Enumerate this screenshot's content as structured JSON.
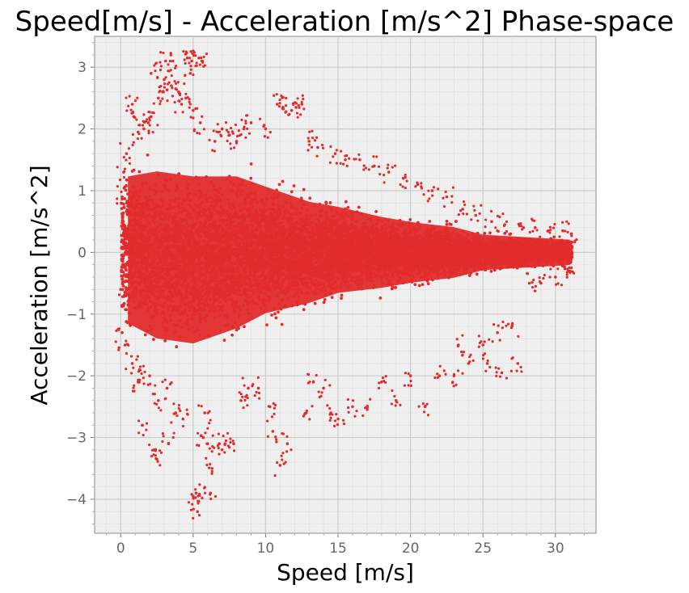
{
  "chart_data": {
    "type": "scatter",
    "title": "Speed[m/s] - Acceleration [m/s^2] Phase-space",
    "xlabel": "Speed [m/s]",
    "ylabel": "Acceleration [m/s^2]",
    "xlim": [
      -1.8,
      32.8
    ],
    "ylim": [
      -4.55,
      3.5
    ],
    "xticks": [
      0,
      5,
      10,
      15,
      20,
      25,
      30
    ],
    "xtick_labels": [
      "0",
      "5",
      "10",
      "15",
      "20",
      "25",
      "30"
    ],
    "yticks": [
      -4,
      -3,
      -2,
      -1,
      0,
      1,
      2,
      3
    ],
    "ytick_labels": [
      "−4",
      "−3",
      "−2",
      "−1",
      "0",
      "1",
      "2",
      "3"
    ],
    "grid": true,
    "colors": {
      "points": "#e22b2b",
      "panel": "#efefef",
      "grid_major": "#cccccc",
      "grid_minor": "#e0e0e0"
    },
    "series": [
      {
        "points": [
          [
            0.1,
            0.9
          ],
          [
            0.0,
            -0.6
          ],
          [
            0.2,
            1.3
          ],
          [
            0.1,
            -1.3
          ],
          [
            0.4,
            1.6
          ],
          [
            0.3,
            -1.5
          ],
          [
            0.8,
            2.4
          ],
          [
            0.9,
            2.2
          ],
          [
            0.8,
            -1.8
          ],
          [
            1.2,
            1.95
          ],
          [
            1.3,
            -1.9
          ],
          [
            1.2,
            -2.1
          ],
          [
            1.5,
            -2.8
          ],
          [
            1.6,
            2.0
          ],
          [
            1.9,
            2.1
          ],
          [
            2.0,
            -2.0
          ],
          [
            2.1,
            2.2
          ],
          [
            2.3,
            -3.2
          ],
          [
            2.5,
            -3.35
          ],
          [
            2.6,
            2.5
          ],
          [
            2.6,
            -2.4
          ],
          [
            2.9,
            2.6
          ],
          [
            3.0,
            2.8
          ],
          [
            3.1,
            3.1
          ],
          [
            3.2,
            -2.2
          ],
          [
            3.3,
            -3.1
          ],
          [
            3.6,
            3.1
          ],
          [
            3.5,
            2.7
          ],
          [
            2.1,
            2.9
          ],
          [
            3.8,
            -2.6
          ],
          [
            4.0,
            2.6
          ],
          [
            4.2,
            2.4
          ],
          [
            4.3,
            -2.7
          ],
          [
            4.5,
            2.5
          ],
          [
            4.6,
            3.15
          ],
          [
            4.8,
            2.9
          ],
          [
            4.9,
            3.1
          ],
          [
            5.0,
            2.3
          ],
          [
            5.0,
            -3.95
          ],
          [
            5.2,
            -3.9
          ],
          [
            5.3,
            -4.2
          ],
          [
            5.4,
            3.15
          ],
          [
            5.6,
            3.1
          ],
          [
            5.5,
            2.1
          ],
          [
            5.7,
            -3.0
          ],
          [
            5.8,
            -2.6
          ],
          [
            6.0,
            -3.1
          ],
          [
            6.2,
            -3.9
          ],
          [
            6.3,
            -3.5
          ],
          [
            6.5,
            1.8
          ],
          [
            6.8,
            -3.1
          ],
          [
            7.0,
            2.0
          ],
          [
            7.2,
            -3.1
          ],
          [
            7.5,
            1.9
          ],
          [
            7.8,
            -3.1
          ],
          [
            8.0,
            1.8
          ],
          [
            8.3,
            -2.4
          ],
          [
            8.5,
            2.0
          ],
          [
            8.8,
            -2.2
          ],
          [
            9.0,
            2.1
          ],
          [
            9.5,
            -2.2
          ],
          [
            10.0,
            2.0
          ],
          [
            10.3,
            -2.5
          ],
          [
            10.5,
            -2.9
          ],
          [
            10.8,
            2.4
          ],
          [
            11.0,
            -3.45
          ],
          [
            11.2,
            2.35
          ],
          [
            11.5,
            -3.1
          ],
          [
            11.8,
            2.3
          ],
          [
            12.1,
            2.35
          ],
          [
            12.5,
            2.4
          ],
          [
            12.8,
            -2.6
          ],
          [
            13.0,
            1.8
          ],
          [
            13.3,
            -2.1
          ],
          [
            13.6,
            1.7
          ],
          [
            14.0,
            -2.2
          ],
          [
            14.5,
            -2.6
          ],
          [
            14.8,
            1.6
          ],
          [
            15.0,
            -2.7
          ],
          [
            15.5,
            1.5
          ],
          [
            16.0,
            -2.5
          ],
          [
            16.5,
            1.5
          ],
          [
            17.0,
            -2.5
          ],
          [
            17.5,
            1.4
          ],
          [
            18.0,
            -2.1
          ],
          [
            18.5,
            1.3
          ],
          [
            19.0,
            -2.4
          ],
          [
            19.5,
            1.2
          ],
          [
            20.0,
            -2.0
          ],
          [
            20.5,
            1.1
          ],
          [
            21.0,
            -2.5
          ],
          [
            21.5,
            1.0
          ],
          [
            22.0,
            -2.0
          ],
          [
            22.5,
            0.9
          ],
          [
            23.0,
            -2.0
          ],
          [
            23.3,
            -1.5
          ],
          [
            23.6,
            0.7
          ],
          [
            24.0,
            -1.8
          ],
          [
            24.5,
            0.6
          ],
          [
            25.0,
            -1.5
          ],
          [
            25.3,
            -1.8
          ],
          [
            25.6,
            0.5
          ],
          [
            26.0,
            -1.3
          ],
          [
            26.3,
            -1.95
          ],
          [
            26.5,
            0.45
          ],
          [
            27.0,
            -1.2
          ],
          [
            27.4,
            -1.8
          ],
          [
            27.8,
            0.4
          ],
          [
            28.2,
            -0.5
          ],
          [
            28.6,
            0.4
          ],
          [
            29.0,
            -0.5
          ],
          [
            29.5,
            0.35
          ],
          [
            30.0,
            -0.4
          ],
          [
            30.5,
            0.35
          ],
          [
            30.9,
            -0.3
          ],
          [
            31.1,
            0.3
          ],
          [
            31.1,
            -0.25
          ]
        ],
        "density": {
          "description_of_bulk": "dense band of points concentrated between speed 0 and 31 m/s; acceleration spread wide at low speed and narrowing toward high speed",
          "envelope": [
            {
              "x": 0.5,
              "upper": 1.5,
              "lower": -1.4
            },
            {
              "x": 2.5,
              "upper": 1.6,
              "lower": -1.7
            },
            {
              "x": 5.0,
              "upper": 1.5,
              "lower": -1.8
            },
            {
              "x": 8.0,
              "upper": 1.5,
              "lower": -1.5
            },
            {
              "x": 10.0,
              "upper": 1.3,
              "lower": -1.2
            },
            {
              "x": 13.0,
              "upper": 1.0,
              "lower": -1.0
            },
            {
              "x": 15.0,
              "upper": 0.9,
              "lower": -0.8
            },
            {
              "x": 18.0,
              "upper": 0.7,
              "lower": -0.7
            },
            {
              "x": 20.0,
              "upper": 0.6,
              "lower": -0.6
            },
            {
              "x": 23.0,
              "upper": 0.5,
              "lower": -0.5
            },
            {
              "x": 25.0,
              "upper": 0.35,
              "lower": -0.35
            },
            {
              "x": 28.0,
              "upper": 0.3,
              "lower": -0.3
            },
            {
              "x": 31.0,
              "upper": 0.25,
              "lower": -0.25
            }
          ]
        }
      }
    ]
  }
}
